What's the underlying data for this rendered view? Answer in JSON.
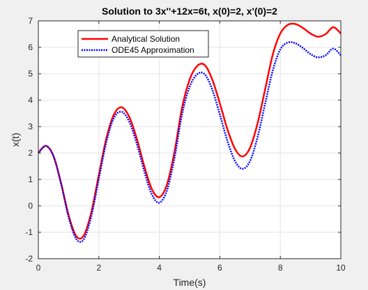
{
  "chart_data": {
    "type": "line",
    "title": "Solution to 3x''+12x=6t, x(0)=2, x'(0)=2",
    "xlabel": "Time(s)",
    "ylabel": "x(t)",
    "xlim": [
      0,
      10
    ],
    "ylim": [
      -2,
      7
    ],
    "xticks": [
      0,
      2,
      4,
      6,
      8,
      10
    ],
    "yticks": [
      -2,
      -1,
      0,
      1,
      2,
      3,
      4,
      5,
      6,
      7
    ],
    "xtick_labels": [
      "0",
      "2",
      "4",
      "6",
      "8",
      "10"
    ],
    "ytick_labels": [
      "-2",
      "-1",
      "0",
      "1",
      "2",
      "3",
      "4",
      "5",
      "6",
      "7"
    ],
    "grid": true,
    "legend_position": "top-left",
    "series": [
      {
        "name": "Analytical Solution",
        "color": "#ff0000",
        "style": "solid",
        "x": [
          0,
          0.25,
          0.5,
          0.75,
          1,
          1.25,
          1.5,
          1.75,
          2,
          2.25,
          2.5,
          2.75,
          3,
          3.25,
          3.5,
          3.75,
          4,
          4.25,
          4.5,
          4.75,
          5,
          5.25,
          5.5,
          5.75,
          6,
          6.25,
          6.5,
          6.75,
          7,
          7.25,
          7.5,
          7.75,
          8,
          8.25,
          8.5,
          8.75,
          9,
          9.25,
          9.5,
          9.75,
          10
        ],
        "y": [
          2.0,
          2.27,
          1.89,
          0.87,
          -0.35,
          -1.14,
          -1.13,
          -0.25,
          1.17,
          2.56,
          3.46,
          3.73,
          3.38,
          2.56,
          1.51,
          0.64,
          0.33,
          0.8,
          2.03,
          3.7,
          4.77,
          5.29,
          5.33,
          4.78,
          3.88,
          2.9,
          2.16,
          1.87,
          2.2,
          3.13,
          4.42,
          5.72,
          6.52,
          6.85,
          6.88,
          6.73,
          6.52,
          6.4,
          6.5,
          6.76,
          6.52
        ]
      },
      {
        "name": "ODE45 Approximation",
        "color": "#0000ff",
        "style": "dotted",
        "x": [
          0,
          0.25,
          0.5,
          0.75,
          1,
          1.25,
          1.5,
          1.75,
          2,
          2.25,
          2.5,
          2.75,
          3,
          3.25,
          3.5,
          3.75,
          4,
          4.25,
          4.5,
          4.75,
          5,
          5.25,
          5.5,
          5.75,
          6,
          6.25,
          6.5,
          6.75,
          7,
          7.25,
          7.5,
          7.75,
          8,
          8.25,
          8.5,
          8.75,
          9,
          9.25,
          9.5,
          9.75,
          10
        ],
        "y": [
          2.0,
          2.27,
          1.88,
          0.84,
          -0.42,
          -1.25,
          -1.27,
          -0.4,
          1.02,
          2.42,
          3.33,
          3.56,
          3.2,
          2.37,
          1.32,
          0.44,
          0.12,
          0.58,
          1.8,
          3.45,
          4.5,
          4.98,
          4.98,
          4.4,
          3.46,
          2.46,
          1.7,
          1.4,
          1.7,
          2.61,
          3.88,
          5.12,
          5.92,
          6.18,
          6.15,
          5.97,
          5.74,
          5.62,
          5.7,
          5.95,
          5.7
        ]
      }
    ]
  }
}
